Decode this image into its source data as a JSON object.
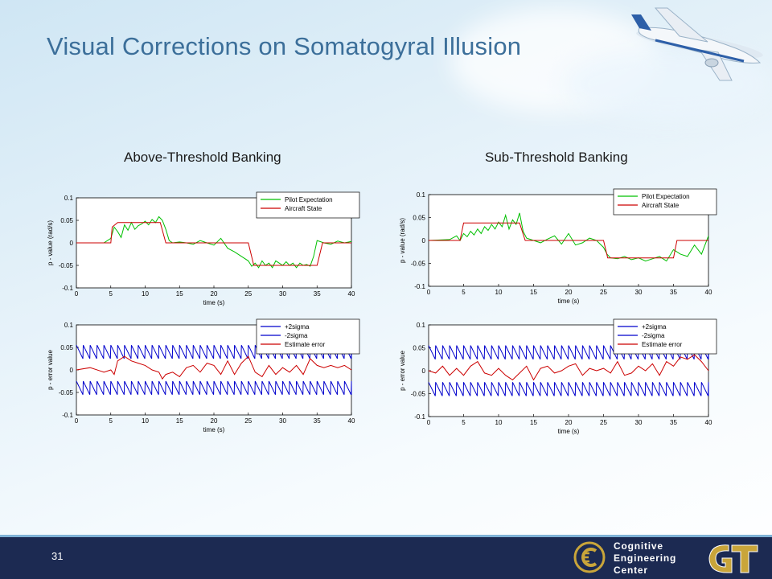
{
  "slide": {
    "title": "Visual Corrections on Somatogyral Illusion",
    "left_heading": "Above-Threshold Banking",
    "right_heading": "Sub-Threshold Banking",
    "page_number": "31",
    "logo_text": [
      "Cognitive",
      "Engineering",
      "Center"
    ],
    "colors": {
      "title": "#3c6f9a",
      "footer": "#1c2a52",
      "gold": "#c9a53a",
      "green": "#00c000",
      "red": "#cc0000",
      "blue": "#0000cc"
    }
  },
  "chart_data": [
    {
      "id": "above-value",
      "type": "line",
      "xlabel": "time (s)",
      "ylabel": "p - value (rad/s)",
      "xlim": [
        0,
        40
      ],
      "ylim": [
        -0.1,
        0.1
      ],
      "xticks": [
        "0",
        "5",
        "10",
        "15",
        "20",
        "25",
        "30",
        "35",
        "40"
      ],
      "yticks": [
        "0.1",
        "0.05",
        "0",
        "-0.05",
        "-0.1"
      ],
      "legend": "top-right",
      "series": [
        {
          "name": "Pilot Expectation",
          "color": "#00c000",
          "x": [
            0,
            4,
            5,
            5.5,
            6,
            6.5,
            7,
            7.5,
            8,
            8.5,
            9,
            9.5,
            10,
            10.5,
            11,
            11.5,
            12,
            12.5,
            13,
            13.5,
            14,
            15,
            16,
            17,
            18,
            19,
            20,
            21,
            22,
            23,
            24,
            25,
            25.5,
            26,
            26.5,
            27,
            27.5,
            28,
            28.5,
            29,
            29.5,
            30,
            30.5,
            31,
            31.5,
            32,
            32.5,
            33,
            33.5,
            34,
            34.5,
            35,
            36,
            37,
            38,
            39,
            40
          ],
          "y": [
            0,
            0,
            0.01,
            0.035,
            0.025,
            0.012,
            0.04,
            0.028,
            0.045,
            0.03,
            0.038,
            0.042,
            0.048,
            0.04,
            0.052,
            0.045,
            0.058,
            0.05,
            0.03,
            0.005,
            0,
            0.002,
            0,
            -0.003,
            0.005,
            0,
            -0.005,
            0.01,
            -0.012,
            -0.02,
            -0.03,
            -0.04,
            -0.052,
            -0.045,
            -0.055,
            -0.04,
            -0.05,
            -0.045,
            -0.055,
            -0.04,
            -0.045,
            -0.05,
            -0.042,
            -0.05,
            -0.045,
            -0.055,
            -0.045,
            -0.05,
            -0.048,
            -0.052,
            -0.03,
            0.005,
            0,
            -0.003,
            0.004,
            0,
            0.003
          ]
        },
        {
          "name": "Aircraft State",
          "color": "#cc0000",
          "x": [
            0,
            5,
            5.2,
            6,
            12.2,
            13,
            25,
            25.8,
            35,
            35.8,
            40
          ],
          "y": [
            0,
            0,
            0.035,
            0.045,
            0.045,
            0,
            0,
            -0.05,
            -0.05,
            0,
            0
          ]
        }
      ]
    },
    {
      "id": "above-error",
      "type": "line",
      "xlabel": "time (s)",
      "ylabel": "p - error value",
      "xlim": [
        0,
        40
      ],
      "ylim": [
        -0.1,
        0.1
      ],
      "xticks": [
        "0",
        "5",
        "10",
        "15",
        "20",
        "25",
        "30",
        "35",
        "40"
      ],
      "yticks": [
        "0.1",
        "0.05",
        "0",
        "-0.05",
        "-0.1"
      ],
      "legend": "top-right",
      "series": [
        {
          "name": "+2sigma",
          "color": "#0000cc",
          "band": "upper",
          "period": 1.0,
          "high": 0.055,
          "low": 0.025
        },
        {
          "name": "-2sigma",
          "color": "#0000cc",
          "band": "lower",
          "period": 1.0,
          "high": -0.025,
          "low": -0.055
        },
        {
          "name": "Estimate error",
          "color": "#cc0000",
          "x": [
            0,
            2,
            4,
            5,
            5.5,
            6,
            7,
            8,
            9,
            10,
            11,
            12,
            12.5,
            13,
            14,
            15,
            16,
            17,
            18,
            19,
            20,
            21,
            22,
            23,
            24,
            25,
            26,
            27,
            28,
            29,
            30,
            31,
            32,
            33,
            34,
            35,
            36,
            37,
            38,
            39,
            40
          ],
          "y": [
            0,
            0.005,
            -0.005,
            0,
            -0.01,
            0.02,
            0.03,
            0.02,
            0.015,
            0.01,
            0,
            -0.005,
            -0.02,
            -0.01,
            -0.005,
            -0.015,
            0.005,
            0.01,
            -0.005,
            0.015,
            0.01,
            -0.01,
            0.02,
            -0.01,
            0.015,
            0.03,
            -0.005,
            -0.015,
            0.01,
            -0.01,
            0.005,
            -0.005,
            0.01,
            -0.01,
            0.025,
            0.01,
            0.005,
            0.01,
            0.005,
            0.01,
            0
          ]
        }
      ]
    },
    {
      "id": "sub-value",
      "type": "line",
      "xlabel": "time (s)",
      "ylabel": "p - value (rad/s)",
      "xlim": [
        0,
        40
      ],
      "ylim": [
        -0.1,
        0.1
      ],
      "xticks": [
        "0",
        "5",
        "10",
        "15",
        "20",
        "25",
        "30",
        "35",
        "40"
      ],
      "yticks": [
        "0.1",
        "0.05",
        "0",
        "-0.05",
        "-0.1"
      ],
      "legend": "top-right",
      "series": [
        {
          "name": "Pilot Expectation",
          "color": "#00c000",
          "x": [
            0,
            3,
            4,
            4.5,
            5,
            5.5,
            6,
            6.5,
            7,
            7.5,
            8,
            8.5,
            9,
            9.5,
            10,
            10.5,
            11,
            11.5,
            12,
            12.5,
            13,
            13.5,
            14,
            15,
            16,
            17,
            18,
            19,
            20,
            21,
            22,
            23,
            24,
            25,
            25.5,
            26,
            27,
            28,
            29,
            30,
            31,
            32,
            33,
            34,
            35,
            36,
            37,
            38,
            39,
            40
          ],
          "y": [
            0,
            0.002,
            0.01,
            0,
            0.015,
            0.008,
            0.02,
            0.012,
            0.025,
            0.015,
            0.03,
            0.022,
            0.035,
            0.025,
            0.04,
            0.03,
            0.055,
            0.025,
            0.045,
            0.035,
            0.06,
            0.02,
            0.005,
            0,
            -0.005,
            0.003,
            0.01,
            -0.008,
            0.015,
            -0.01,
            -0.005,
            0.005,
            0,
            -0.015,
            -0.03,
            -0.038,
            -0.04,
            -0.035,
            -0.042,
            -0.038,
            -0.045,
            -0.04,
            -0.035,
            -0.045,
            -0.02,
            -0.03,
            -0.035,
            -0.01,
            -0.03,
            0.01
          ]
        },
        {
          "name": "Aircraft State",
          "color": "#cc0000",
          "x": [
            0,
            4.5,
            5,
            13,
            13.8,
            25,
            25.6,
            35,
            35.5,
            40
          ],
          "y": [
            0,
            0,
            0.038,
            0.038,
            0,
            0,
            -0.038,
            -0.038,
            0,
            0
          ]
        }
      ]
    },
    {
      "id": "sub-error",
      "type": "line",
      "xlabel": "time (s)",
      "ylabel": "p - error value",
      "xlim": [
        0,
        40
      ],
      "ylim": [
        -0.1,
        0.1
      ],
      "xticks": [
        "0",
        "5",
        "10",
        "15",
        "20",
        "25",
        "30",
        "35",
        "40"
      ],
      "yticks": [
        "0.1",
        "0.05",
        "0",
        "-0.05",
        "-0.1"
      ],
      "legend": "top-right",
      "series": [
        {
          "name": "+2sigma",
          "color": "#0000cc",
          "band": "upper",
          "period": 1.0,
          "high": 0.055,
          "low": 0.025
        },
        {
          "name": "-2sigma",
          "color": "#0000cc",
          "band": "lower",
          "period": 1.0,
          "high": -0.025,
          "low": -0.055
        },
        {
          "name": "Estimate error",
          "color": "#cc0000",
          "x": [
            0,
            1,
            2,
            3,
            4,
            5,
            6,
            7,
            8,
            9,
            10,
            11,
            12,
            13,
            14,
            15,
            16,
            17,
            18,
            19,
            20,
            21,
            22,
            23,
            24,
            25,
            26,
            27,
            28,
            29,
            30,
            31,
            32,
            33,
            34,
            35,
            36,
            37,
            38,
            39,
            40
          ],
          "y": [
            0,
            -0.005,
            0.01,
            -0.01,
            0.005,
            -0.01,
            0.01,
            0.02,
            -0.005,
            -0.01,
            0.005,
            -0.01,
            -0.02,
            -0.005,
            0.01,
            -0.02,
            0.005,
            0.01,
            -0.005,
            0,
            0.01,
            0.015,
            -0.01,
            0.005,
            0,
            0.005,
            -0.005,
            0.02,
            -0.01,
            -0.005,
            0.01,
            0,
            0.015,
            -0.01,
            0.02,
            0.01,
            0.03,
            0.025,
            0.035,
            0.02,
            0
          ]
        }
      ]
    }
  ]
}
